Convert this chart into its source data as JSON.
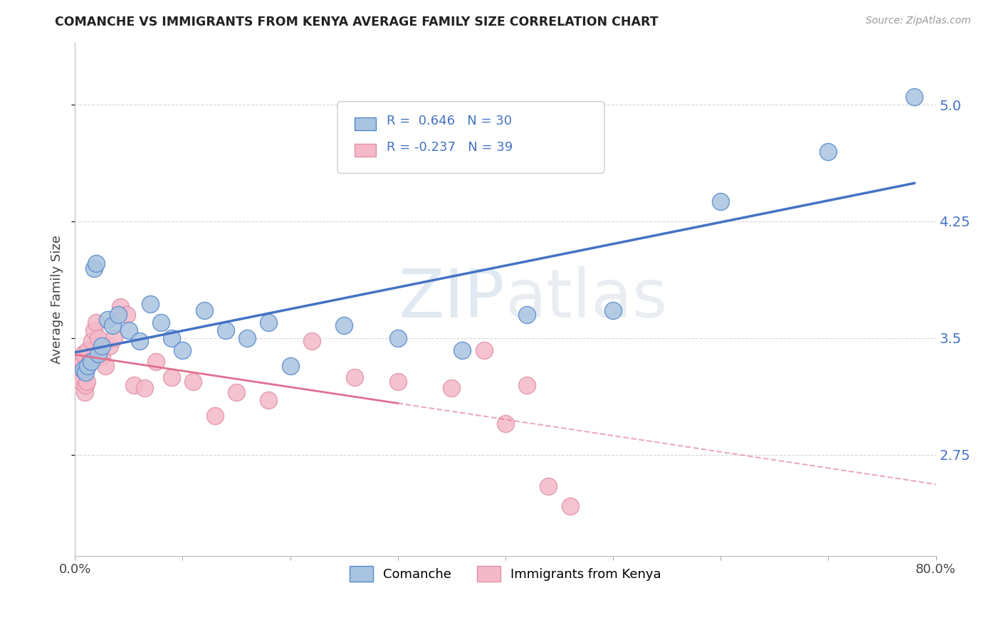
{
  "title": "COMANCHE VS IMMIGRANTS FROM KENYA AVERAGE FAMILY SIZE CORRELATION CHART",
  "source": "Source: ZipAtlas.com",
  "ylabel": "Average Family Size",
  "yticks": [
    2.75,
    3.5,
    4.25,
    5.0
  ],
  "xlim": [
    0.0,
    80.0
  ],
  "ylim": [
    2.1,
    5.4
  ],
  "legend1_label": "R =  0.646   N = 30",
  "legend2_label": "R = -0.237   N = 39",
  "watermark_zip": "ZIP",
  "watermark_atlas": "atlas",
  "comanche_color": "#a8c4e0",
  "kenya_color": "#f4b8c8",
  "comanche_edge_color": "#5588cc",
  "kenya_edge_color": "#e090a8",
  "comanche_line_color": "#4472c4",
  "kenya_line_color": "#e07090",
  "grid_color": "#cccccc",
  "comanche_x": [
    0.8,
    1.0,
    1.2,
    1.5,
    1.8,
    2.0,
    2.2,
    2.5,
    3.0,
    3.5,
    4.0,
    5.0,
    6.0,
    7.0,
    8.0,
    9.0,
    10.0,
    12.0,
    14.0,
    16.0,
    18.0,
    20.0,
    25.0,
    30.0,
    36.0,
    42.0,
    50.0,
    60.0,
    70.0,
    78.0
  ],
  "comanche_y": [
    3.3,
    3.28,
    3.32,
    3.35,
    3.95,
    3.98,
    3.4,
    3.45,
    3.62,
    3.58,
    3.65,
    3.55,
    3.48,
    3.72,
    3.6,
    3.5,
    3.42,
    3.68,
    3.55,
    3.5,
    3.6,
    3.32,
    3.58,
    3.5,
    3.42,
    3.65,
    3.68,
    4.38,
    4.7,
    5.05
  ],
  "kenya_x": [
    0.2,
    0.3,
    0.4,
    0.5,
    0.6,
    0.7,
    0.8,
    0.9,
    1.0,
    1.1,
    1.2,
    1.4,
    1.6,
    1.8,
    2.0,
    2.2,
    2.5,
    2.8,
    3.2,
    3.6,
    4.2,
    4.8,
    5.5,
    6.5,
    7.5,
    9.0,
    11.0,
    13.0,
    15.0,
    18.0,
    22.0,
    26.0,
    30.0,
    35.0,
    38.0,
    40.0,
    42.0,
    44.0,
    46.0
  ],
  "kenya_y": [
    3.28,
    3.32,
    3.3,
    3.25,
    3.22,
    3.35,
    3.4,
    3.15,
    3.2,
    3.22,
    3.42,
    3.35,
    3.48,
    3.55,
    3.6,
    3.5,
    3.38,
    3.32,
    3.45,
    3.5,
    3.7,
    3.65,
    3.2,
    3.18,
    3.35,
    3.25,
    3.22,
    3.0,
    3.15,
    3.1,
    3.48,
    3.25,
    3.22,
    3.18,
    3.42,
    2.95,
    3.2,
    2.55,
    2.42
  ]
}
